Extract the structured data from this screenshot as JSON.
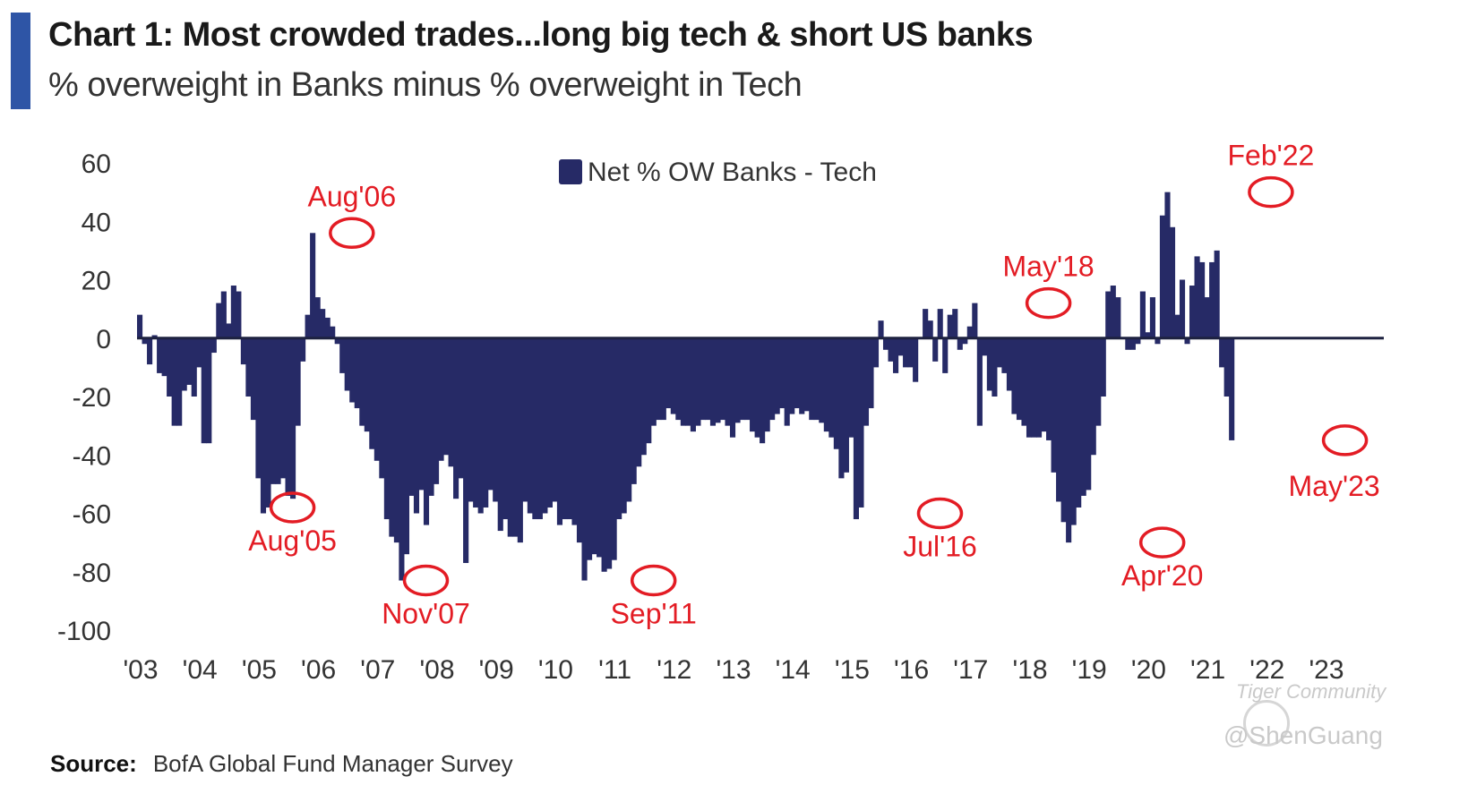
{
  "header": {
    "title": "Chart 1: Most crowded trades...long big tech & short US banks",
    "subtitle": "% overweight in Banks minus % overweight in Tech"
  },
  "footer": {
    "source_label": "Source:",
    "source_text": "BofA Global Fund Manager Survey"
  },
  "watermark": {
    "brand": "Tiger Community",
    "handle": "@ShenGuang"
  },
  "colors": {
    "bar": "#262a66",
    "annotation": "#e31c24",
    "accent": "#2e55a6",
    "zero_line": "#1e2240"
  },
  "chart_data": {
    "type": "bar",
    "title": "Chart 1: Most crowded trades...long big tech & short US banks",
    "subtitle": "% overweight in Banks minus % overweight in Tech",
    "xlabel": "",
    "ylabel": "",
    "ylim": [
      -100,
      60
    ],
    "yticks": [
      60,
      40,
      20,
      0,
      -20,
      -40,
      -60,
      -80,
      -100
    ],
    "xlim": [
      2003.0,
      2023.9
    ],
    "xticks": [
      {
        "label": "'03",
        "value": 2003
      },
      {
        "label": "'04",
        "value": 2004
      },
      {
        "label": "'05",
        "value": 2005
      },
      {
        "label": "'06",
        "value": 2006
      },
      {
        "label": "'07",
        "value": 2007
      },
      {
        "label": "'08",
        "value": 2008
      },
      {
        "label": "'09",
        "value": 2009
      },
      {
        "label": "'10",
        "value": 2010
      },
      {
        "label": "'11",
        "value": 2011
      },
      {
        "label": "'12",
        "value": 2012
      },
      {
        "label": "'13",
        "value": 2013
      },
      {
        "label": "'14",
        "value": 2014
      },
      {
        "label": "'15",
        "value": 2015
      },
      {
        "label": "'16",
        "value": 2016
      },
      {
        "label": "'17",
        "value": 2017
      },
      {
        "label": "'18",
        "value": 2018
      },
      {
        "label": "'19",
        "value": 2019
      },
      {
        "label": "'20",
        "value": 2020
      },
      {
        "label": "'21",
        "value": 2021
      },
      {
        "label": "'22",
        "value": 2022
      },
      {
        "label": "'23",
        "value": 2023
      }
    ],
    "legend": {
      "label": "Net % OW Banks - Tech",
      "position": "top-center"
    },
    "grid": false,
    "series": [
      {
        "name": "Net % OW Banks - Tech",
        "start": 2003.0,
        "step": 0.08333,
        "values": [
          8,
          -2,
          -9,
          1,
          -12,
          -13,
          -20,
          -30,
          -30,
          -18,
          -16,
          -20,
          -10,
          -36,
          -36,
          -5,
          12,
          16,
          5,
          18,
          16,
          -9,
          -20,
          -28,
          -48,
          -60,
          -58,
          -50,
          -50,
          -48,
          -54,
          -55,
          -30,
          -8,
          8,
          36,
          14,
          10,
          7,
          4,
          -2,
          -12,
          -18,
          -22,
          -24,
          -30,
          -32,
          -38,
          -42,
          -48,
          -62,
          -68,
          -70,
          -83,
          -74,
          -54,
          -60,
          -52,
          -64,
          -54,
          -50,
          -42,
          -40,
          -44,
          -55,
          -48,
          -77,
          -56,
          -58,
          -60,
          -58,
          -52,
          -56,
          -66,
          -62,
          -68,
          -68,
          -70,
          -56,
          -60,
          -62,
          -62,
          -60,
          -58,
          -56,
          -64,
          -62,
          -62,
          -64,
          -70,
          -83,
          -76,
          -74,
          -75,
          -80,
          -79,
          -76,
          -62,
          -60,
          -56,
          -50,
          -44,
          -40,
          -36,
          -30,
          -28,
          -28,
          -24,
          -26,
          -28,
          -30,
          -30,
          -32,
          -30,
          -28,
          -28,
          -30,
          -29,
          -28,
          -30,
          -34,
          -29,
          -28,
          -28,
          -32,
          -34,
          -36,
          -32,
          -28,
          -26,
          -24,
          -30,
          -26,
          -24,
          -26,
          -25,
          -28,
          -28,
          -29,
          -32,
          -34,
          -38,
          -48,
          -46,
          -34,
          -62,
          -58,
          -30,
          -24,
          -10,
          6,
          -4,
          -8,
          -12,
          -6,
          -10,
          -10,
          -15,
          0,
          10,
          6,
          -8,
          10,
          -12,
          8,
          10,
          -4,
          -2,
          4,
          12,
          -30,
          -6,
          -18,
          -20,
          -10,
          -12,
          -18,
          -26,
          -28,
          -30,
          -34,
          -34,
          -34,
          -32,
          -35,
          -46,
          -56,
          -63,
          -70,
          -64,
          -58,
          -54,
          -52,
          -40,
          -30,
          -20,
          16,
          18,
          14,
          0,
          -4,
          -4,
          -2,
          16,
          2,
          14,
          -2,
          42,
          50,
          38,
          8,
          20,
          -2,
          18,
          28,
          26,
          14,
          26,
          30,
          -10,
          -20,
          -35
        ]
      }
    ],
    "annotations": [
      {
        "label": "Aug'05",
        "x": 2005.58,
        "y": -58
      },
      {
        "label": "Aug'06",
        "x": 2006.58,
        "y": 36
      },
      {
        "label": "Nov'07",
        "x": 2007.83,
        "y": -83
      },
      {
        "label": "Sep'11",
        "x": 2011.67,
        "y": -83
      },
      {
        "label": "Jul'16",
        "x": 2016.5,
        "y": -60
      },
      {
        "label": "May'18",
        "x": 2018.33,
        "y": 12
      },
      {
        "label": "Apr'20",
        "x": 2020.25,
        "y": -70
      },
      {
        "label": "Feb'22",
        "x": 2022.08,
        "y": 50
      },
      {
        "label": "May'23",
        "x": 2023.33,
        "y": -35
      }
    ]
  }
}
